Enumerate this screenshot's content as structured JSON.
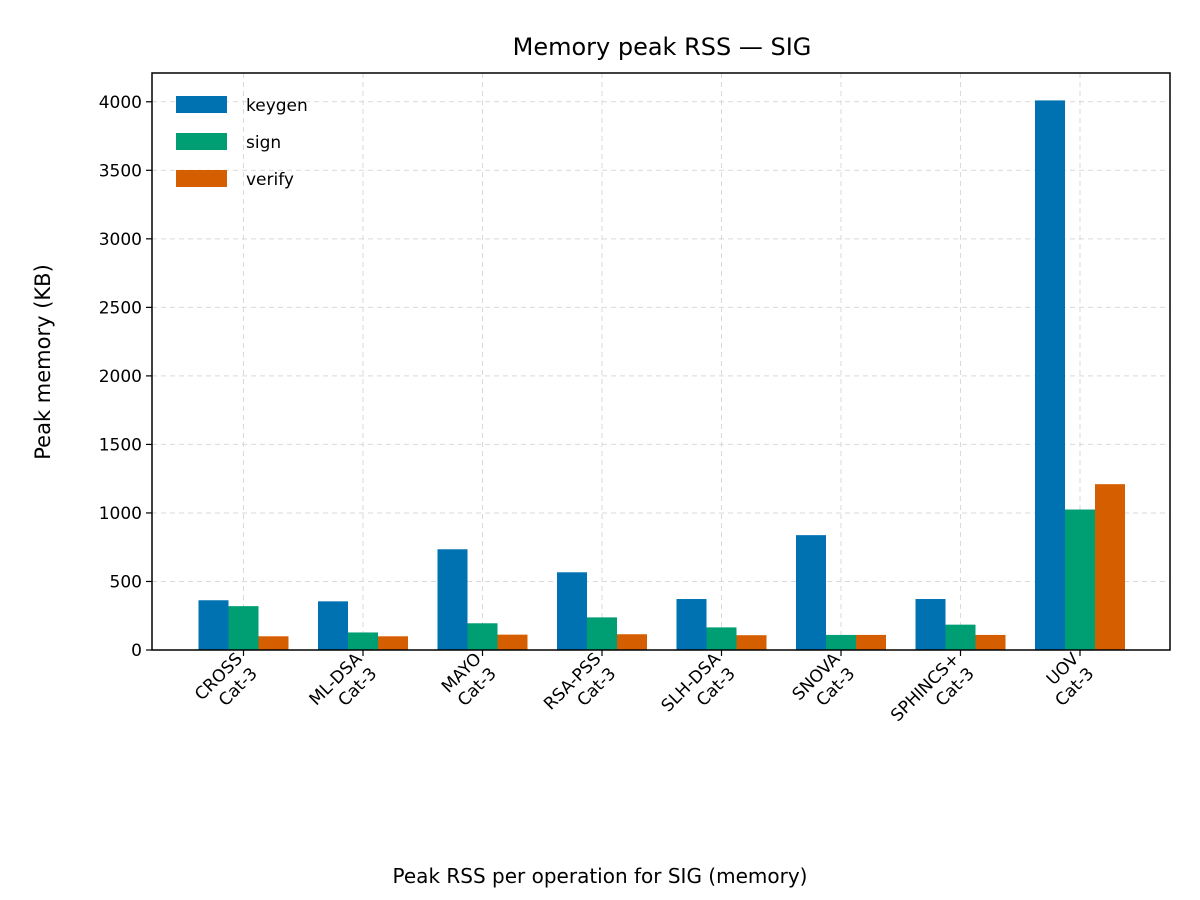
{
  "chart_data": {
    "type": "bar",
    "title": "Memory peak RSS — SIG",
    "ylabel": "Peak memory (KB)",
    "xlabel": "",
    "caption": "Peak RSS per operation for SIG (memory)",
    "categories": [
      [
        "CROSS",
        "Cat-3"
      ],
      [
        "ML-DSA",
        "Cat-3"
      ],
      [
        "MAYO",
        "Cat-3"
      ],
      [
        "RSA-PSS",
        "Cat-3"
      ],
      [
        "SLH-DSA",
        "Cat-3"
      ],
      [
        "SNOVA",
        "Cat-3"
      ],
      [
        "SPHINCS+",
        "Cat-3"
      ],
      [
        "UOV",
        "Cat-3"
      ]
    ],
    "series": [
      {
        "name": "keygen",
        "color": "#0072b2",
        "values": [
          363,
          355,
          735,
          567,
          372,
          838,
          372,
          4010
        ]
      },
      {
        "name": "sign",
        "color": "#009e73",
        "values": [
          320,
          128,
          195,
          238,
          165,
          110,
          185,
          1025
        ]
      },
      {
        "name": "verify",
        "color": "#d55e00",
        "values": [
          100,
          100,
          112,
          115,
          108,
          110,
          110,
          1210
        ]
      }
    ],
    "ylim": [
      0,
      4210
    ],
    "yticks": [
      0,
      500,
      1000,
      1500,
      2000,
      2500,
      3000,
      3500,
      4000
    ],
    "grid": true,
    "legend_position": "top-left"
  }
}
